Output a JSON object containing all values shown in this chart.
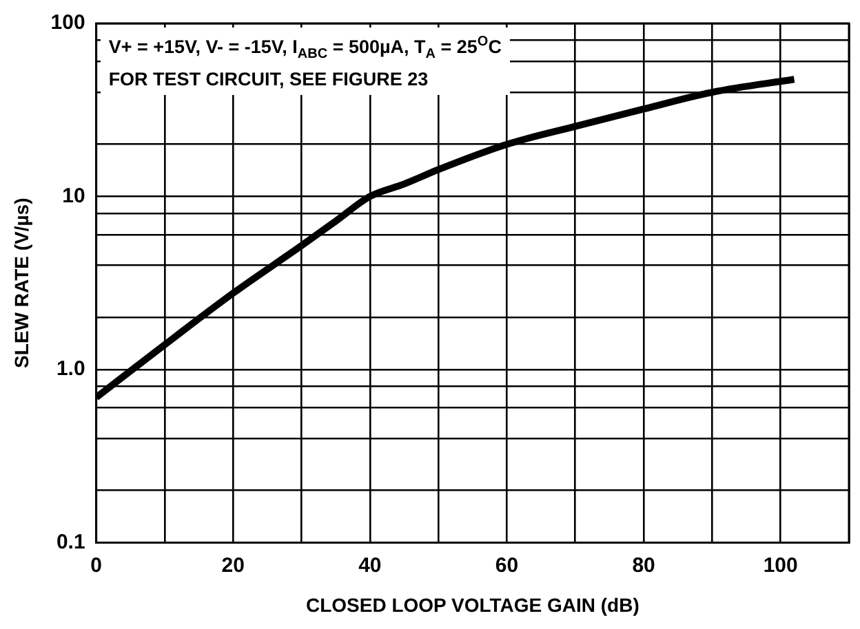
{
  "chart_data": {
    "type": "line",
    "xlabel": "CLOSED LOOP VOLTAGE GAIN (dB)",
    "ylabel": "SLEW RATE (V/µs)",
    "annotations": [
      "V+ = +15V, V- = -15V, I$_{ABC}$ = 500µA, T$_{A}$ = 25$^{O}$C",
      "FOR TEST CIRCUIT, SEE FIGURE 23"
    ],
    "x": [
      0,
      10,
      20,
      30,
      35,
      40,
      45,
      50,
      60,
      70,
      80,
      90,
      102
    ],
    "series": [
      {
        "color": "#000000",
        "values": [
          0.69,
          1.39,
          2.76,
          5.2,
          7.2,
          10,
          11.8,
          14.3,
          20,
          25.4,
          32,
          40,
          47.5
        ]
      }
    ],
    "xlim": [
      0,
      110
    ],
    "xticks": [
      0,
      {
        "value": 10,
        "label": null
      },
      20,
      {
        "value": 30,
        "label": null
      },
      40,
      {
        "value": 50,
        "label": null
      },
      60,
      {
        "value": 70,
        "label": null
      },
      80,
      {
        "value": 90,
        "label": null
      },
      100,
      {
        "value": 110,
        "label": null
      }
    ],
    "ylim": [
      0.1,
      100
    ],
    "log": "y",
    "yticks": [
      0.1,
      {
        "value": 0.2,
        "label": null
      },
      {
        "value": 0.4,
        "label": null
      },
      {
        "value": 0.6,
        "label": null
      },
      {
        "value": 0.8,
        "label": null
      },
      {
        "value": 1,
        "label": "1.0"
      },
      {
        "value": 2,
        "label": null
      },
      {
        "value": 4,
        "label": null
      },
      {
        "value": 6,
        "label": null
      },
      {
        "value": 8,
        "label": null
      },
      10,
      {
        "value": 20,
        "label": null
      },
      {
        "value": 40,
        "label": null
      },
      {
        "value": 60,
        "label": null
      },
      {
        "value": 80,
        "label": null
      },
      100
    ],
    "grid": true,
    "marker": "none",
    "line_style": "solid",
    "legend": false
  }
}
